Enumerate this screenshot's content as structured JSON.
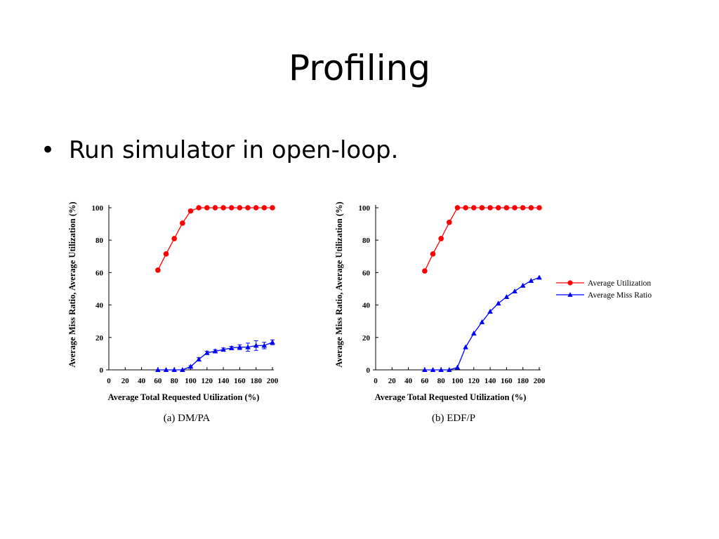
{
  "slide": {
    "title": "Profiling",
    "bullet": "Run simulator in open-loop."
  },
  "colors": {
    "utilization": "#ff0000",
    "miss_ratio": "#0000ff",
    "axis": "#000000"
  },
  "legend": {
    "placement": "right",
    "entries": [
      {
        "label": "Average Utilization",
        "marker": "circle",
        "color": "#ff0000"
      },
      {
        "label": "Average Miss Ratio",
        "marker": "triangle",
        "color": "#0000ff"
      }
    ]
  },
  "chart_data": [
    {
      "type": "line",
      "caption": "(a) DM/PA",
      "xlabel": "Average Total Requested Utilization (%)",
      "ylabel": "Average Miss Ratio, Average Utilization (%)",
      "xlim": [
        0,
        200
      ],
      "ylim": [
        0,
        100
      ],
      "xticks": [
        0,
        20,
        40,
        60,
        80,
        100,
        120,
        140,
        160,
        180,
        200
      ],
      "yticks": [
        0,
        20,
        40,
        60,
        80,
        100
      ],
      "grid": false,
      "x": [
        60,
        70,
        80,
        90,
        100,
        110,
        120,
        130,
        140,
        150,
        160,
        170,
        180,
        190,
        200
      ],
      "series": [
        {
          "name": "Average Utilization",
          "marker": "circle",
          "color": "#ff0000",
          "values": [
            61.5,
            71.5,
            81,
            90.5,
            98,
            100,
            100,
            100,
            100,
            100,
            100,
            100,
            100,
            100,
            100
          ]
        },
        {
          "name": "Average Miss Ratio",
          "marker": "triangle",
          "color": "#0000ff",
          "values": [
            0,
            0,
            0,
            0,
            2,
            6.5,
            10.5,
            11.5,
            12.5,
            13.5,
            14,
            14,
            15,
            15,
            17
          ],
          "error": [
            0,
            0,
            0,
            0,
            0.5,
            1,
            1,
            1,
            1,
            1,
            1.5,
            2.5,
            3,
            2,
            1.5
          ]
        }
      ]
    },
    {
      "type": "line",
      "caption": "(b) EDF/P",
      "xlabel": "Average Total Requested Utilization (%)",
      "ylabel": "Average Miss Ratio, Average Utilization (%)",
      "xlim": [
        0,
        200
      ],
      "ylim": [
        0,
        100
      ],
      "xticks": [
        0,
        20,
        40,
        60,
        80,
        100,
        120,
        140,
        160,
        180,
        200
      ],
      "yticks": [
        0,
        20,
        40,
        60,
        80,
        100
      ],
      "grid": false,
      "x": [
        60,
        70,
        80,
        90,
        100,
        110,
        120,
        130,
        140,
        150,
        160,
        170,
        180,
        190,
        200
      ],
      "series": [
        {
          "name": "Average Utilization",
          "marker": "circle",
          "color": "#ff0000",
          "values": [
            61,
            71.5,
            81,
            91,
            100,
            100,
            100,
            100,
            100,
            100,
            100,
            100,
            100,
            100,
            100
          ]
        },
        {
          "name": "Average Miss Ratio",
          "marker": "triangle",
          "color": "#0000ff",
          "values": [
            0,
            0,
            0,
            0,
            1.5,
            14,
            22.5,
            29.5,
            36,
            41,
            45,
            48.5,
            52,
            55,
            57
          ]
        }
      ]
    }
  ]
}
